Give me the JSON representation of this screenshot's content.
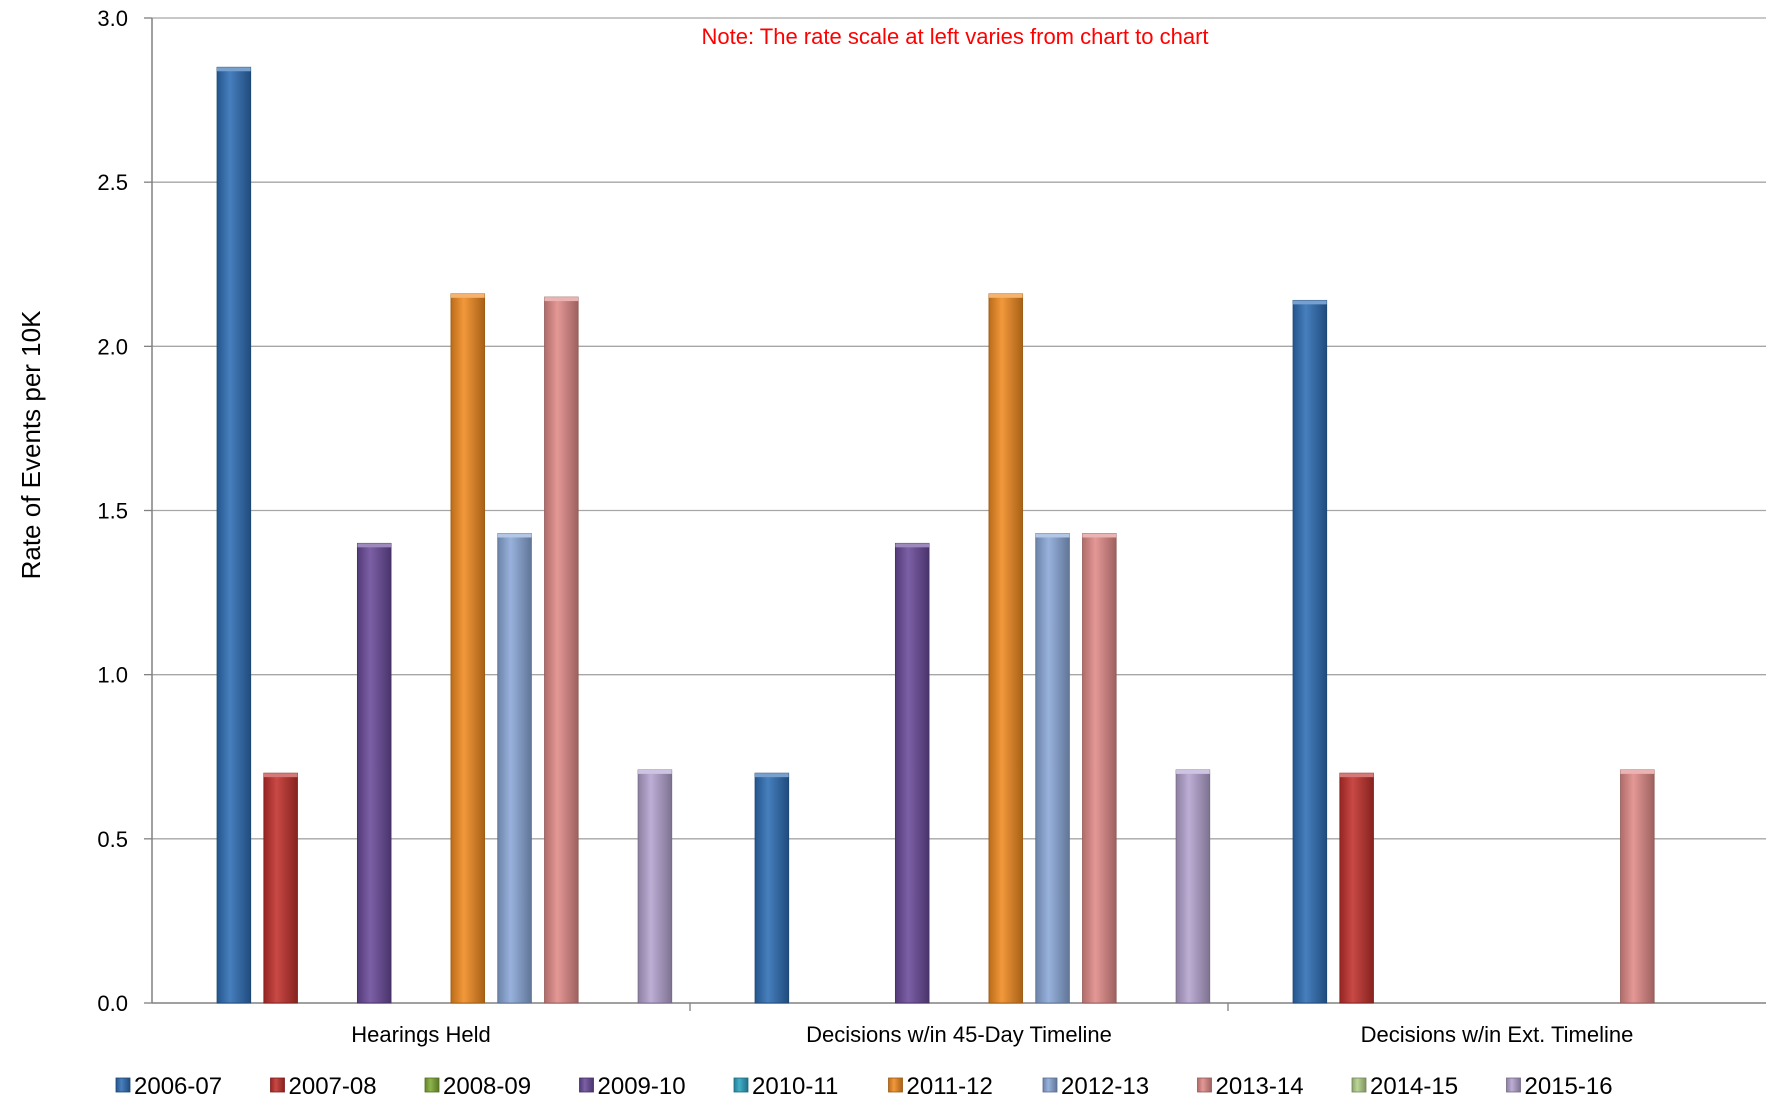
{
  "chart_data": {
    "type": "bar",
    "title": "",
    "xlabel": "",
    "ylabel": "Rate of Events per 10K",
    "ylim": [
      0,
      3.0
    ],
    "yticks": [
      "0.0",
      "0.5",
      "1.0",
      "1.5",
      "2.0",
      "2.5",
      "3.0"
    ],
    "grid": true,
    "legend_position": "bottom",
    "annotation": "Note:  The rate scale at left varies from chart to chart",
    "annotation_color": "#ff0000",
    "categories": [
      "Hearings Held",
      "Decisions w/in 45-Day Timeline",
      "Decisions w/in Ext. Timeline"
    ],
    "series": [
      {
        "name": "2006-07",
        "color": "#2e6db4",
        "values": [
          2.85,
          0.7,
          2.14
        ]
      },
      {
        "name": "2007-08",
        "color": "#c0302c",
        "values": [
          0.7,
          0,
          0.7
        ]
      },
      {
        "name": "2008-09",
        "color": "#7faa35",
        "values": [
          0,
          0,
          0
        ]
      },
      {
        "name": "2009-10",
        "color": "#6a4a9a",
        "values": [
          1.4,
          1.4,
          0
        ]
      },
      {
        "name": "2010-11",
        "color": "#2ba3c0",
        "values": [
          0,
          0,
          0
        ]
      },
      {
        "name": "2011-12",
        "color": "#f08a20",
        "values": [
          2.16,
          2.16,
          0
        ]
      },
      {
        "name": "2012-13",
        "color": "#8aa8d8",
        "values": [
          1.43,
          1.43,
          0
        ]
      },
      {
        "name": "2013-14",
        "color": "#e08a88",
        "values": [
          2.15,
          1.43,
          0.71
        ]
      },
      {
        "name": "2014-15",
        "color": "#b2d089",
        "values": [
          0,
          0,
          0
        ]
      },
      {
        "name": "2015-16",
        "color": "#b4a3cf",
        "values": [
          0.71,
          0.71,
          0
        ]
      }
    ]
  }
}
